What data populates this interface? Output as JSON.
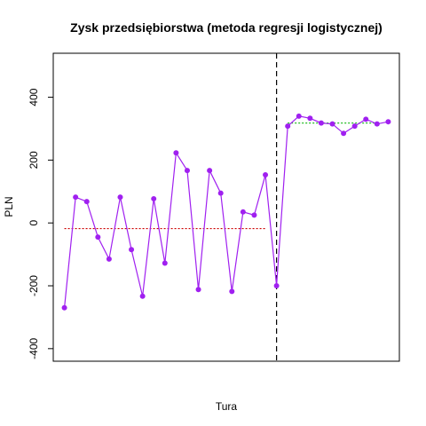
{
  "chart_data": {
    "type": "line",
    "title": "Zysk przedsiębiorstwa (metoda regresji logistycznej)",
    "xlabel": "Tura",
    "ylabel": "PLN",
    "ylim": [
      -440,
      540
    ],
    "xlim": [
      0,
      31
    ],
    "y_ticks": [
      -400,
      -200,
      0,
      200,
      400
    ],
    "y_tick_labels": [
      "-400",
      "-200",
      "0",
      "200",
      "400"
    ],
    "x_ticks_shown": false,
    "grid": false,
    "legend": "none",
    "series": [
      {
        "color": "#a020f0",
        "x": [
          1,
          2,
          3,
          4,
          5,
          6,
          7,
          8,
          9,
          10,
          11,
          12,
          13,
          14,
          15,
          16,
          17,
          18,
          19,
          20,
          21,
          22,
          23,
          24,
          25,
          26,
          27,
          28,
          29,
          30
        ],
        "values": [
          -270,
          82,
          68,
          -45,
          -115,
          82,
          -85,
          -233,
          77,
          -128,
          223,
          167,
          -212,
          167,
          95,
          -218,
          35,
          25,
          153,
          -200,
          308,
          340,
          333,
          318,
          315,
          285,
          308,
          330,
          315,
          322
        ]
      }
    ],
    "reference_lines": [
      {
        "kind": "segment",
        "color": "#cc0000",
        "style": "dotted",
        "y": -18,
        "x_from": 1,
        "x_to": 19
      },
      {
        "kind": "segment",
        "color": "#22bb22",
        "style": "dotted",
        "y": 318,
        "x_from": 21,
        "x_to": 29
      },
      {
        "kind": "vertical",
        "color": "#000000",
        "style": "dashed",
        "x": 20
      }
    ]
  }
}
